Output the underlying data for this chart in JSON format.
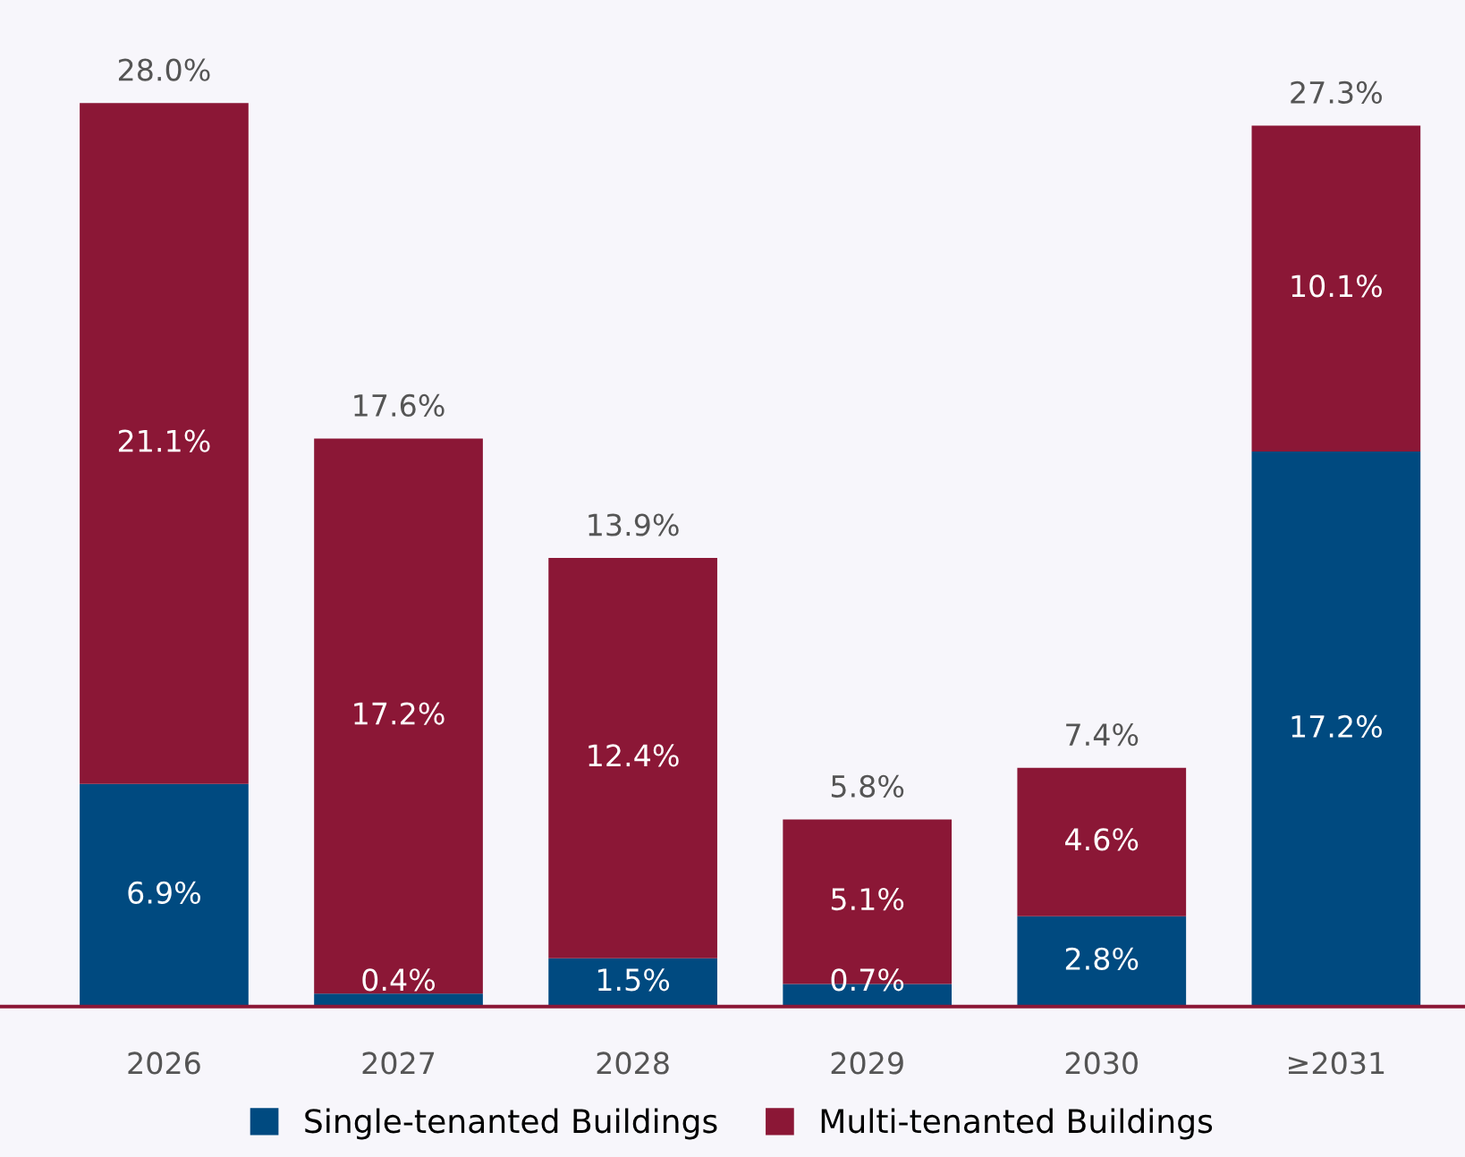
{
  "chart_data": {
    "type": "bar",
    "stacked": true,
    "categories": [
      "2026",
      "2027",
      "2028",
      "2029",
      "2030",
      "≥2031"
    ],
    "series": [
      {
        "name": "Single-tenanted Buildings",
        "color": "#004a80",
        "values": [
          6.9,
          0.4,
          1.5,
          0.7,
          2.8,
          17.2
        ],
        "value_labels": [
          "6.9%",
          "0.4%",
          "1.5%",
          "0.7%",
          "2.8%",
          "17.2%"
        ]
      },
      {
        "name": "Multi-tenanted Buildings",
        "color": "#8b1736",
        "values": [
          21.1,
          17.2,
          12.4,
          5.1,
          4.6,
          10.1
        ],
        "value_labels": [
          "21.1%",
          "17.2%",
          "12.4%",
          "5.1%",
          "4.6%",
          "10.1%"
        ]
      }
    ],
    "totals": [
      "28.0%",
      "17.6%",
      "13.9%",
      "5.8%",
      "7.4%",
      "27.3%"
    ],
    "legend": "bottom",
    "grid": false
  }
}
